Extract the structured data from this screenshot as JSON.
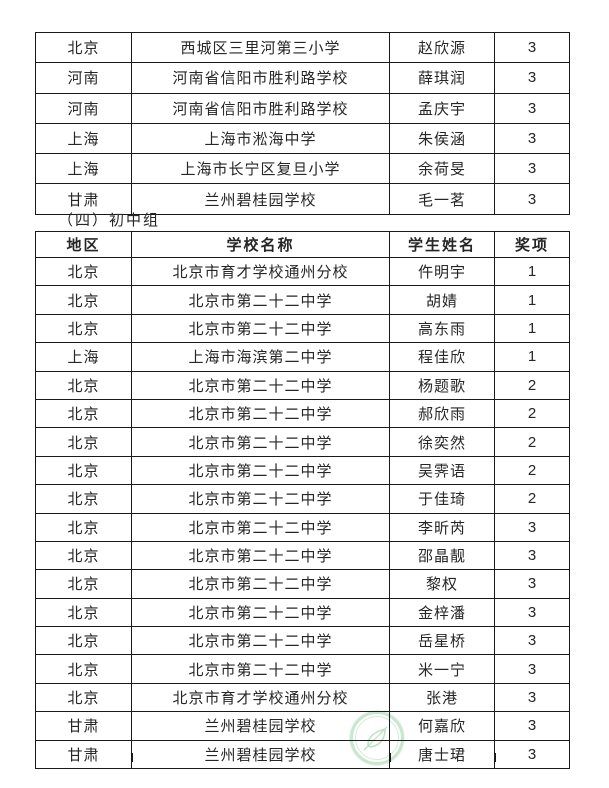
{
  "section_heading": "（四）初中组",
  "senior_table": {
    "rows": [
      [
        "北京",
        "西城区三里河第三小学",
        "赵欣源",
        "3"
      ],
      [
        "河南",
        "河南省信阳市胜利路学校",
        "薛琪润",
        "3"
      ],
      [
        "河南",
        "河南省信阳市胜利路学校",
        "孟庆宇",
        "3"
      ],
      [
        "上海",
        "上海市淞海中学",
        "朱侯涵",
        "3"
      ],
      [
        "上海",
        "上海市长宁区复旦小学",
        "余荷旻",
        "3"
      ],
      [
        "甘肃",
        "兰州碧桂园学校",
        "毛一茗",
        "3"
      ]
    ]
  },
  "junior_table": {
    "columns": [
      "地区",
      "学校名称",
      "学生姓名",
      "奖项"
    ],
    "rows": [
      [
        "北京",
        "北京市育才学校通州分校",
        "仵明宇",
        "1"
      ],
      [
        "北京",
        "北京市第二十二中学",
        "胡婧",
        "1"
      ],
      [
        "北京",
        "北京市第二十二中学",
        "高东雨",
        "1"
      ],
      [
        "上海",
        "上海市海滨第二中学",
        "程佳欣",
        "1"
      ],
      [
        "北京",
        "北京市第二十二中学",
        "杨题歌",
        "2"
      ],
      [
        "北京",
        "北京市第二十二中学",
        "郝欣雨",
        "2"
      ],
      [
        "北京",
        "北京市第二十二中学",
        "徐奕然",
        "2"
      ],
      [
        "北京",
        "北京市第二十二中学",
        "吴霁语",
        "2"
      ],
      [
        "北京",
        "北京市第二十二中学",
        "于佳琦",
        "2"
      ],
      [
        "北京",
        "北京市第二十二中学",
        "李昕芮",
        "3"
      ],
      [
        "北京",
        "北京市第二十二中学",
        "邵晶靓",
        "3"
      ],
      [
        "北京",
        "北京市第二十二中学",
        "黎权",
        "3"
      ],
      [
        "北京",
        "北京市第二十二中学",
        "金梓潘",
        "3"
      ],
      [
        "北京",
        "北京市第二十二中学",
        "岳星桥",
        "3"
      ],
      [
        "北京",
        "北京市第二十二中学",
        "米一宁",
        "3"
      ],
      [
        "北京",
        "北京市育才学校通州分校",
        "张港",
        "3"
      ],
      [
        "甘肃",
        "兰州碧桂园学校",
        "何嘉欣",
        "3"
      ],
      [
        "甘肃",
        "兰州碧桂园学校",
        "唐士珺",
        "3"
      ]
    ]
  },
  "watermark": {
    "icon": "leaf-logo",
    "ring_color": "#b7dfc1",
    "leaf_color": "#a9d8b4"
  }
}
